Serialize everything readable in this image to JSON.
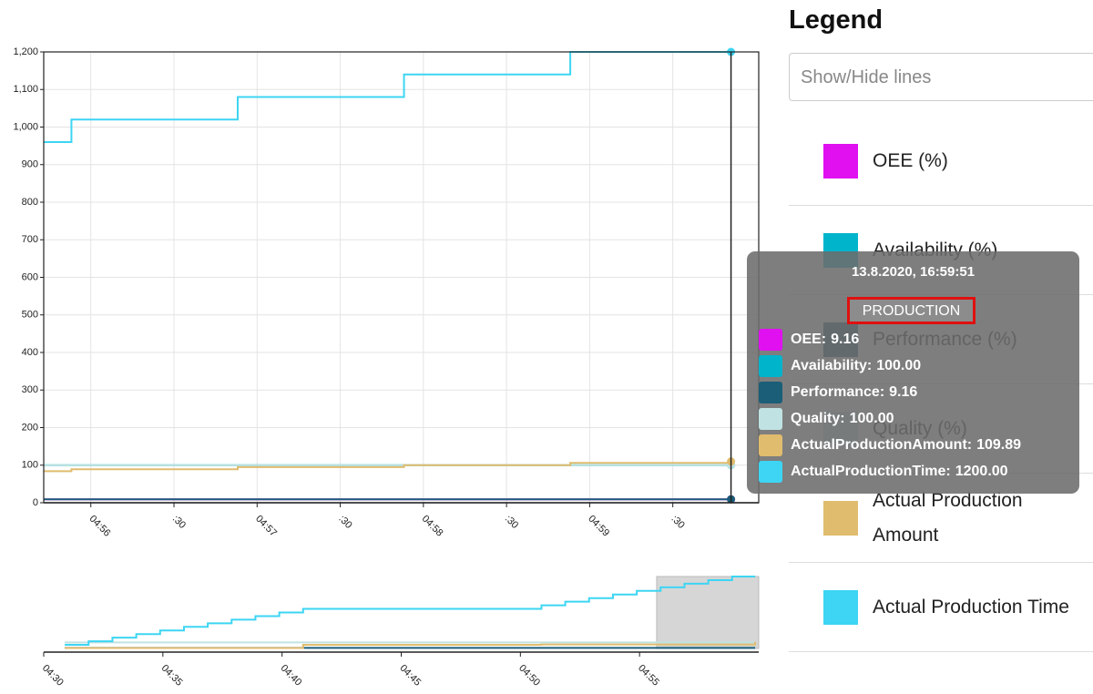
{
  "chart_data": [
    {
      "type": "line",
      "step": true,
      "grid": true,
      "x": [
        "04:55:43",
        "04:55:53",
        "04:56:53",
        "04:57:53",
        "04:58:53",
        "04:59:51"
      ],
      "xlim": [
        "04:55:43",
        "05:00:01"
      ],
      "xticks": [
        {
          "value": "04:56:00",
          "label": "04:56"
        },
        {
          "value": "04:56:30",
          "label": ":30"
        },
        {
          "value": "04:57:00",
          "label": "04:57"
        },
        {
          "value": "04:57:30",
          "label": ":30"
        },
        {
          "value": "04:58:00",
          "label": "04:58"
        },
        {
          "value": "04:58:30",
          "label": ":30"
        },
        {
          "value": "04:59:00",
          "label": "04:59"
        },
        {
          "value": "04:59:30",
          "label": ":30"
        }
      ],
      "ylim": [
        0,
        1200
      ],
      "yticks": [
        0,
        100,
        200,
        300,
        400,
        500,
        600,
        700,
        800,
        900,
        {
          "value": 1000,
          "label": "1,000"
        },
        {
          "value": 1100,
          "label": "1,100"
        },
        {
          "value": 1200,
          "label": "1,200"
        }
      ],
      "series": [
        {
          "name": "OEE (%)",
          "color": "#e010f0",
          "values": [
            9.16,
            9.16,
            9.16,
            9.16,
            9.16,
            9.16
          ]
        },
        {
          "name": "Availability (%)",
          "color": "#00b4cc",
          "values": [
            100,
            100,
            100,
            100,
            100,
            100
          ]
        },
        {
          "name": "Performance (%)",
          "color": "#1a5e78",
          "values": [
            9.16,
            9.16,
            9.16,
            9.16,
            9.16,
            9.16
          ]
        },
        {
          "name": "Quality (%)",
          "color": "#c0e2e2",
          "values": [
            100,
            100,
            100,
            100,
            100,
            100
          ]
        },
        {
          "name": "Actual Production Amount",
          "color": "#e0bc6e",
          "values": [
            84,
            89,
            95,
            100,
            106,
            109.89
          ]
        },
        {
          "name": "Actual Production Time",
          "color": "#3dd5f3",
          "values": [
            960,
            1020,
            1080,
            1140,
            1200,
            1200
          ]
        }
      ]
    },
    {
      "type": "line",
      "step": true,
      "xlim": [
        "04:30:00",
        "05:00:00"
      ],
      "xticks": [
        {
          "value": "04:30:00",
          "label": "04:30"
        },
        {
          "value": "04:35:00",
          "label": "04:35"
        },
        {
          "value": "04:40:00",
          "label": "04:40"
        },
        {
          "value": "04:45:00",
          "label": "04:45"
        },
        {
          "value": "04:50:00",
          "label": "04:50"
        },
        {
          "value": "04:55:00",
          "label": "04:55"
        }
      ],
      "ylim": [
        0,
        1200
      ],
      "series": [
        {
          "color": "#1a5e78",
          "x": [
            "04:30:53",
            "04:59:51"
          ],
          "values": [
            9.16,
            9.16
          ]
        },
        {
          "color": "#c0e2e2",
          "x": [
            "04:30:53",
            "04:59:51"
          ],
          "values": [
            100,
            100
          ]
        },
        {
          "color": "#e0bc6e",
          "x": [
            "04:30:53",
            "04:40:53",
            "04:50:53",
            "04:59:51"
          ],
          "values": [
            8,
            60,
            66,
            109.89
          ]
        },
        {
          "color": "#3dd5f3",
          "x": [
            "04:30:53",
            "04:31:53",
            "04:32:53",
            "04:33:53",
            "04:34:53",
            "04:35:53",
            "04:36:53",
            "04:37:53",
            "04:38:53",
            "04:39:53",
            "04:40:53",
            "04:50:53",
            "04:51:53",
            "04:52:53",
            "04:53:53",
            "04:54:53",
            "04:55:53",
            "04:56:53",
            "04:57:53",
            "04:58:53",
            "04:59:51"
          ],
          "values": [
            60,
            120,
            180,
            240,
            300,
            360,
            420,
            480,
            540,
            600,
            660,
            720,
            780,
            840,
            900,
            960,
            1020,
            1080,
            1140,
            1200,
            1200
          ]
        }
      ]
    }
  ],
  "legend": {
    "title": "Legend",
    "placeholder": "Show/Hide lines"
  },
  "tooltip": {
    "title": "13.8.2020, 16:59:51",
    "badge": "PRODUCTION",
    "rows": [
      {
        "label": "OEE:",
        "value": "9.16",
        "color": "#e010f0"
      },
      {
        "label": "Availability:",
        "value": "100.00",
        "color": "#00b4cc"
      },
      {
        "label": "Performance:",
        "value": "9.16",
        "color": "#1a5e78"
      },
      {
        "label": "Quality:",
        "value": "100.00",
        "color": "#c0e2e2"
      },
      {
        "label": "ActualProductionAmount:",
        "value": "109.89",
        "color": "#e0bc6e"
      },
      {
        "label": "ActualProductionTime:",
        "value": "1200.00",
        "color": "#3dd5f3"
      }
    ]
  }
}
